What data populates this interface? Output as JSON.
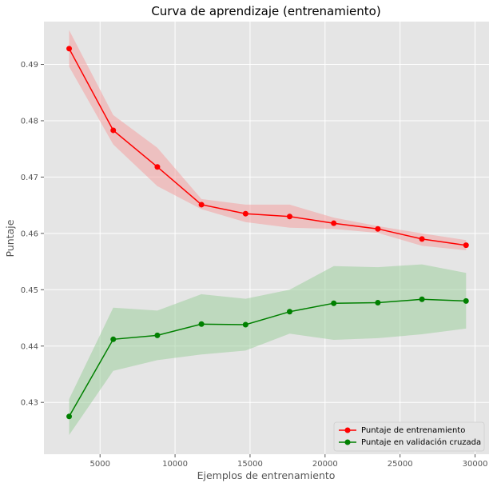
{
  "chart_data": {
    "type": "line",
    "title": "Curva de aprendizaje (entrenamiento)",
    "xlabel": "Ejemplos de entrenamiento",
    "ylabel": "Puntaje",
    "x": [
      2940,
      5880,
      8820,
      11760,
      14700,
      17640,
      20580,
      23520,
      26460,
      29400
    ],
    "xlim": [
      1260,
      30930
    ],
    "ylim": [
      0.4208,
      0.4976
    ],
    "xticks": [
      5000,
      10000,
      15000,
      20000,
      25000,
      30000
    ],
    "yticks": [
      0.43,
      0.44,
      0.45,
      0.46,
      0.47,
      0.48,
      0.49
    ],
    "grid": true,
    "legend_position": "lower-right",
    "series": [
      {
        "name": "Puntaje de entrenamiento",
        "color": "#ff0000",
        "values": [
          0.4928,
          0.4783,
          0.4718,
          0.4651,
          0.4635,
          0.463,
          0.4618,
          0.4608,
          0.459,
          0.4579
        ],
        "band_upper": [
          0.4961,
          0.481,
          0.4752,
          0.4661,
          0.4651,
          0.4651,
          0.4628,
          0.4613,
          0.46,
          0.4588
        ],
        "band_lower": [
          0.4896,
          0.4758,
          0.4684,
          0.4643,
          0.462,
          0.461,
          0.4608,
          0.4601,
          0.4578,
          0.457
        ],
        "band_color": "#f4a3a3"
      },
      {
        "name": "Puntaje en validación cruzada",
        "color": "#008000",
        "values": [
          0.4275,
          0.4412,
          0.4419,
          0.4439,
          0.4438,
          0.4461,
          0.4476,
          0.4477,
          0.4483,
          0.448
        ],
        "band_upper": [
          0.4306,
          0.4468,
          0.4463,
          0.4492,
          0.4484,
          0.45,
          0.4542,
          0.454,
          0.4545,
          0.453
        ],
        "band_lower": [
          0.4242,
          0.4356,
          0.4375,
          0.4385,
          0.4392,
          0.4422,
          0.4411,
          0.4414,
          0.4421,
          0.4431
        ],
        "band_color": "#9fcf9f"
      }
    ]
  }
}
